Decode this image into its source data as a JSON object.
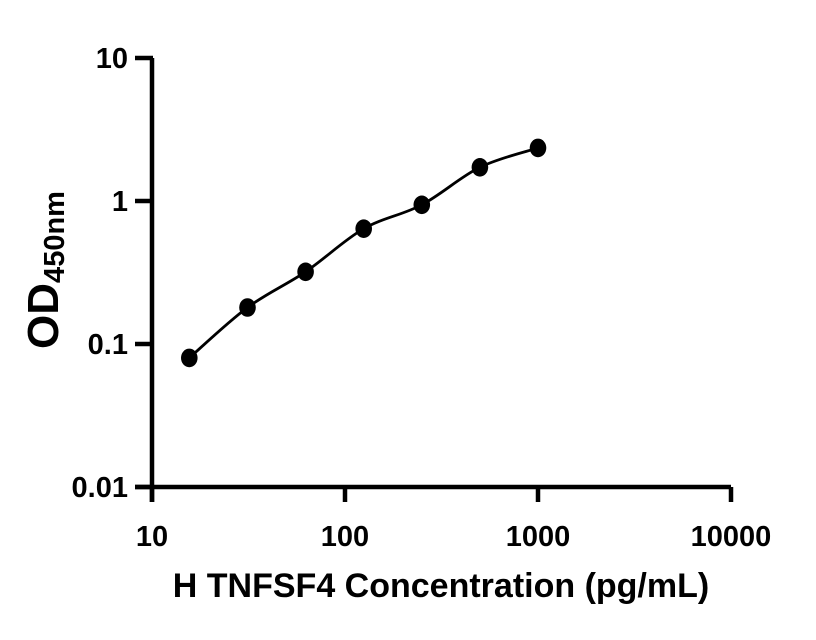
{
  "chart_data": {
    "type": "scatter",
    "title": "",
    "xlabel": "H TNFSF4 Concentration (pg/mL)",
    "ylabel_main": "OD",
    "ylabel_sub": "450nm",
    "xscale": "log",
    "yscale": "log",
    "xlim": [
      10,
      10000
    ],
    "ylim": [
      0.01,
      10
    ],
    "xticks": [
      10,
      100,
      1000,
      10000
    ],
    "xtick_labels": [
      "10",
      "100",
      "1000",
      "10000"
    ],
    "yticks": [
      10,
      1,
      0.1,
      0.01
    ],
    "ytick_labels": [
      "10",
      "1",
      "0.1",
      "0.01"
    ],
    "x": [
      15.6,
      31.25,
      62.5,
      125,
      250,
      500,
      1000
    ],
    "y": [
      0.08,
      0.18,
      0.32,
      0.64,
      0.94,
      1.72,
      2.35
    ],
    "grid": false,
    "legend": null,
    "line_color": "#000000",
    "marker_color": "#000000",
    "axis_color": "#000000",
    "background": "#ffffff"
  }
}
